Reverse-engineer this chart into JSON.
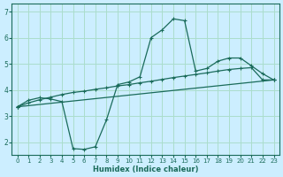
{
  "xlabel": "Humidex (Indice chaleur)",
  "bg_color": "#cceeff",
  "grid_color": "#aaddcc",
  "line_color": "#1a6b5a",
  "xlim": [
    -0.5,
    23.5
  ],
  "ylim": [
    1.5,
    7.3
  ],
  "yticks": [
    2,
    3,
    4,
    5,
    6,
    7
  ],
  "xticks": [
    0,
    1,
    2,
    3,
    4,
    5,
    6,
    7,
    8,
    9,
    10,
    11,
    12,
    13,
    14,
    15,
    16,
    17,
    18,
    19,
    20,
    21,
    22,
    23
  ],
  "line1_x": [
    0,
    1,
    2,
    3,
    4,
    5,
    6,
    7,
    8,
    9,
    10,
    11,
    12,
    13,
    14,
    15,
    16,
    17,
    18,
    19,
    20,
    21,
    22,
    23
  ],
  "line1_y": [
    3.35,
    3.6,
    3.7,
    3.65,
    3.55,
    1.75,
    1.72,
    1.82,
    2.85,
    4.2,
    4.3,
    4.5,
    6.0,
    6.3,
    6.72,
    6.65,
    4.72,
    4.82,
    5.1,
    5.22,
    5.22,
    4.92,
    4.62,
    4.38
  ],
  "line2_x": [
    0,
    1,
    2,
    3,
    4,
    5,
    6,
    7,
    8,
    9,
    10,
    11,
    12,
    13,
    14,
    15,
    16,
    17,
    18,
    19,
    20,
    21,
    22,
    23
  ],
  "line2_y": [
    3.35,
    3.5,
    3.62,
    3.72,
    3.82,
    3.9,
    3.95,
    4.02,
    4.08,
    4.15,
    4.2,
    4.27,
    4.33,
    4.4,
    4.47,
    4.53,
    4.59,
    4.65,
    4.72,
    4.78,
    4.82,
    4.85,
    4.38,
    4.38
  ],
  "line3_x": [
    0,
    23
  ],
  "line3_y": [
    3.35,
    4.38
  ]
}
